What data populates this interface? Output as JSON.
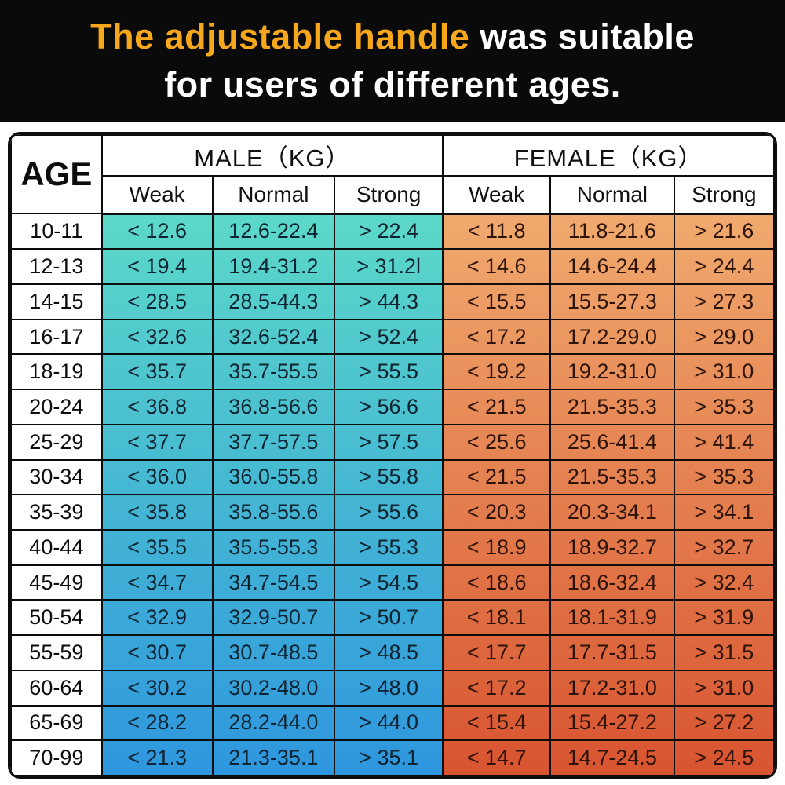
{
  "title": {
    "highlight": "The adjustable handle",
    "rest_line1": " was suitable",
    "line2": "for users of different ages."
  },
  "chart_data": {
    "type": "table",
    "title": "The adjustable handle was suitable for users of different ages.",
    "unit": "KG",
    "header": {
      "age": "AGE",
      "groups": [
        {
          "label": "MALE（KG）",
          "subcolumns": [
            "Weak",
            "Normal",
            "Strong"
          ]
        },
        {
          "label": "FEMALE（KG）",
          "subcolumns": [
            "Weak",
            "Normal",
            "Strong"
          ]
        }
      ]
    },
    "rows": [
      {
        "age": "10-11",
        "male": [
          "< 12.6",
          "12.6-22.4",
          "> 22.4"
        ],
        "female": [
          "< 11.8",
          "11.8-21.6",
          "> 21.6"
        ]
      },
      {
        "age": "12-13",
        "male": [
          "< 19.4",
          "19.4-31.2",
          "> 31.2l"
        ],
        "female": [
          "< 14.6",
          "14.6-24.4",
          "> 24.4"
        ]
      },
      {
        "age": "14-15",
        "male": [
          "< 28.5",
          "28.5-44.3",
          "> 44.3"
        ],
        "female": [
          "< 15.5",
          "15.5-27.3",
          "> 27.3"
        ]
      },
      {
        "age": "16-17",
        "male": [
          "< 32.6",
          "32.6-52.4",
          "> 52.4"
        ],
        "female": [
          "< 17.2",
          "17.2-29.0",
          "> 29.0"
        ]
      },
      {
        "age": "18-19",
        "male": [
          "< 35.7",
          "35.7-55.5",
          "> 55.5"
        ],
        "female": [
          "< 19.2",
          "19.2-31.0",
          "> 31.0"
        ]
      },
      {
        "age": "20-24",
        "male": [
          "< 36.8",
          "36.8-56.6",
          "> 56.6"
        ],
        "female": [
          "< 21.5",
          "21.5-35.3",
          "> 35.3"
        ]
      },
      {
        "age": "25-29",
        "male": [
          "< 37.7",
          "37.7-57.5",
          "> 57.5"
        ],
        "female": [
          "< 25.6",
          "25.6-41.4",
          "> 41.4"
        ]
      },
      {
        "age": "30-34",
        "male": [
          "< 36.0",
          "36.0-55.8",
          "> 55.8"
        ],
        "female": [
          "< 21.5",
          "21.5-35.3",
          "> 35.3"
        ]
      },
      {
        "age": "35-39",
        "male": [
          "< 35.8",
          "35.8-55.6",
          "> 55.6"
        ],
        "female": [
          "< 20.3",
          "20.3-34.1",
          "> 34.1"
        ]
      },
      {
        "age": "40-44",
        "male": [
          "< 35.5",
          "35.5-55.3",
          "> 55.3"
        ],
        "female": [
          "< 18.9",
          "18.9-32.7",
          "> 32.7"
        ]
      },
      {
        "age": "45-49",
        "male": [
          "< 34.7",
          "34.7-54.5",
          "> 54.5"
        ],
        "female": [
          "< 18.6",
          "18.6-32.4",
          "> 32.4"
        ]
      },
      {
        "age": "50-54",
        "male": [
          "< 32.9",
          "32.9-50.7",
          "> 50.7"
        ],
        "female": [
          "< 18.1",
          "18.1-31.9",
          "> 31.9"
        ]
      },
      {
        "age": "55-59",
        "male": [
          "< 30.7",
          "30.7-48.5",
          "> 48.5"
        ],
        "female": [
          "< 17.7",
          "17.7-31.5",
          "> 31.5"
        ]
      },
      {
        "age": "60-64",
        "male": [
          "< 30.2",
          "30.2-48.0",
          "> 48.0"
        ],
        "female": [
          "< 17.2",
          "17.2-31.0",
          "> 31.0"
        ]
      },
      {
        "age": "65-69",
        "male": [
          "< 28.2",
          "28.2-44.0",
          "> 44.0"
        ],
        "female": [
          "< 15.4",
          "15.4-27.2",
          "> 27.2"
        ]
      },
      {
        "age": "70-99",
        "male": [
          "< 21.3",
          "21.3-35.1",
          "> 35.1"
        ],
        "female": [
          "< 14.7",
          "14.7-24.5",
          "> 24.5"
        ]
      }
    ]
  },
  "colors": {
    "banner_bg": "#0a0a0a",
    "accent_orange": "#f7a71c",
    "male_top": "#5cd9c8",
    "male_bottom": "#2e96de",
    "female_top": "#f0aa6e",
    "female_bottom": "#d85430"
  }
}
